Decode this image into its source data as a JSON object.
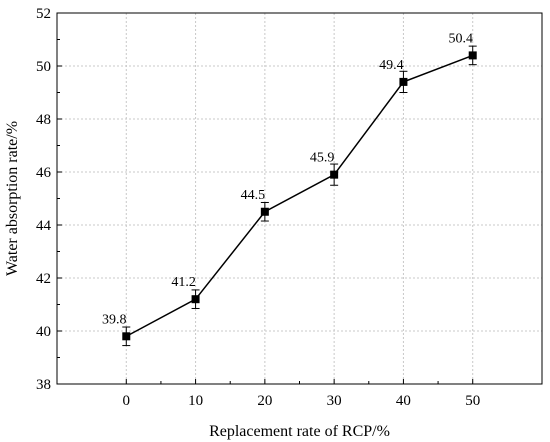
{
  "chart_data": {
    "type": "line",
    "title": "",
    "xlabel": "Replacement rate of RCP/%",
    "ylabel": "Water absorption rate/%",
    "x": [
      0,
      10,
      20,
      30,
      40,
      50
    ],
    "y": [
      39.8,
      41.2,
      44.5,
      45.9,
      49.4,
      50.4
    ],
    "error": [
      0.35,
      0.35,
      0.35,
      0.4,
      0.4,
      0.35
    ],
    "data_labels": [
      "39.8",
      "41.2",
      "44.5",
      "45.9",
      "49.4",
      "50.4"
    ],
    "xlim": [
      -10,
      60
    ],
    "ylim": [
      38,
      52
    ],
    "x_ticks": [
      0,
      10,
      20,
      30,
      40,
      50
    ],
    "y_ticks": [
      38,
      40,
      42,
      44,
      46,
      48,
      50,
      52
    ],
    "grid": true,
    "marker": "square",
    "line_color": "#000000"
  }
}
